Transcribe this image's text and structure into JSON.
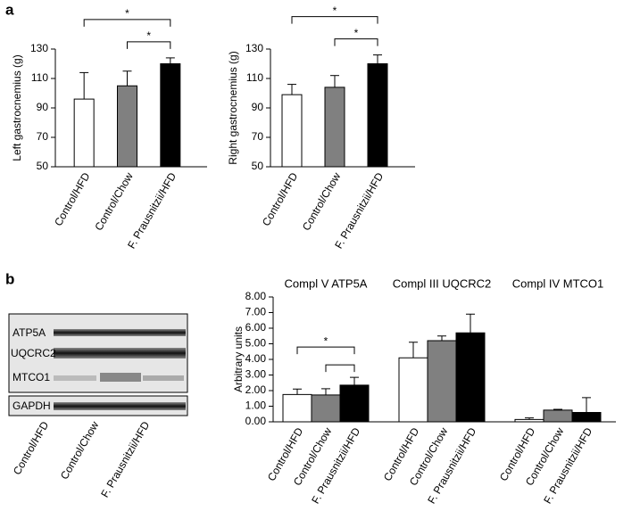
{
  "panels": [
    "a",
    "b"
  ],
  "blot": {
    "bands": [
      "ATP5A",
      "UQCRC2",
      "MTCO1",
      "GAPDH"
    ],
    "lanes": [
      "Control/HFD",
      "Control/Chow",
      "F. Prausnitzii/HFD"
    ]
  },
  "chart_data": [
    {
      "type": "bar",
      "ylabel": "Left gastrocnemius (g)",
      "categories": [
        "Control/HFD",
        "Control/Chow",
        "F. Prausnitzii/HFD"
      ],
      "colors": [
        "#ffffff",
        "#808080",
        "#000000"
      ],
      "values": [
        96,
        105,
        120
      ],
      "errors": [
        18,
        10,
        4
      ],
      "ylim": [
        50,
        130
      ],
      "yticks": [
        50,
        70,
        90,
        110,
        130
      ],
      "significance": [
        {
          "from": 0,
          "to": 2,
          "label": "*"
        },
        {
          "from": 1,
          "to": 2,
          "label": "*"
        }
      ]
    },
    {
      "type": "bar",
      "ylabel": "Right gastrocnemius (g)",
      "categories": [
        "Control/HFD",
        "Control/Chow",
        "F. Prausnitzii/HFD"
      ],
      "colors": [
        "#ffffff",
        "#808080",
        "#000000"
      ],
      "values": [
        99,
        104,
        120
      ],
      "errors": [
        7,
        8,
        6
      ],
      "ylim": [
        50,
        130
      ],
      "yticks": [
        50,
        70,
        90,
        110,
        130
      ],
      "significance": [
        {
          "from": 0,
          "to": 2,
          "label": "*"
        },
        {
          "from": 1,
          "to": 2,
          "label": "*"
        }
      ]
    },
    {
      "type": "grouped_bar",
      "ylabel": "Arbitrary units",
      "categories": [
        "Compl V ATP5A",
        "Compl III UQCRC2",
        "Compl IV MTCO1"
      ],
      "series": [
        {
          "name": "Control/HFD",
          "color": "#ffffff",
          "values": [
            1.75,
            4.1,
            0.15
          ],
          "errors": [
            0.35,
            1.0,
            0.1
          ]
        },
        {
          "name": "Control/Chow",
          "color": "#808080",
          "values": [
            1.72,
            5.2,
            0.75
          ],
          "errors": [
            0.4,
            0.3,
            0.05
          ]
        },
        {
          "name": "F. Prausnitzii/HFD",
          "color": "#000000",
          "values": [
            2.35,
            5.7,
            0.6
          ],
          "errors": [
            0.5,
            1.2,
            0.95
          ]
        }
      ],
      "ylim": [
        0,
        8
      ],
      "yticks": [
        {
          "value": 0,
          "label": "0.00"
        },
        {
          "value": 1,
          "label": "1.00"
        },
        {
          "value": 2,
          "label": "2.00"
        },
        {
          "value": 3,
          "label": "3.00"
        },
        {
          "value": 4,
          "label": "4.00"
        },
        {
          "value": 5,
          "label": "5.00"
        },
        {
          "value": 6,
          "label": "6.00"
        },
        {
          "value": 7,
          "label": "7.00"
        },
        {
          "value": 8,
          "label": "8.00"
        }
      ],
      "significance": [
        {
          "group": 0,
          "from": 0,
          "to": 2,
          "label": "*"
        },
        {
          "group": 0,
          "from": 1,
          "to": 2
        }
      ]
    }
  ]
}
